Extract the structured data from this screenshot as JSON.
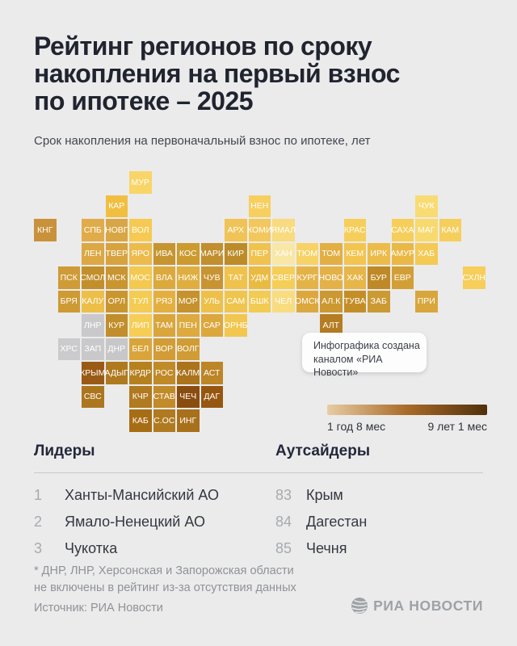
{
  "header": {
    "title_lines": [
      "Рейтинг регионов по сроку",
      "накопления на первый взнос",
      "по ипотеке – 2025"
    ],
    "subtitle": "Срок накопления на первоначальный взнос по ипотеке, лет"
  },
  "colors": {
    "background": "#EBEBEC",
    "title_text": "#20242F",
    "excluded_region": "#C9C9CB",
    "tile_text": "#FFFFFF"
  },
  "callout": {
    "lines": [
      "Инфографика создана",
      "каналом «РИА Новости»"
    ]
  },
  "chart_data": {
    "type": "heatmap",
    "subtype": "tile-grid-cartogram",
    "title": "Рейтинг регионов по сроку накопления на первый взнос по ипотеке – 2025",
    "subtitle": "Срок накопления на первоначальный взнос по ипотеке, лет",
    "legend": {
      "min_label": "1 год 8 мес",
      "max_label": "9 лет 1 мес",
      "gradient": [
        "#E7CDA4",
        "#A96A28",
        "#4F300C"
      ]
    },
    "tiles": [
      {
        "label": "МУР",
        "row": 1,
        "col": 5,
        "color": "#F9D567"
      },
      {
        "label": "КАР",
        "row": 2,
        "col": 4,
        "color": "#F1BE40"
      },
      {
        "label": "НЕН",
        "row": 2,
        "col": 10,
        "color": "#F7CF5E"
      },
      {
        "label": "ЧУК",
        "row": 2,
        "col": 17,
        "color": "#F9DB74"
      },
      {
        "label": "КНГ",
        "row": 3,
        "col": 1,
        "color": "#C9923A"
      },
      {
        "label": "СПБ",
        "row": 3,
        "col": 3,
        "color": "#E0AC4A"
      },
      {
        "label": "НОВГ",
        "row": 3,
        "col": 4,
        "color": "#D9A645"
      },
      {
        "label": "ВОЛ",
        "row": 3,
        "col": 5,
        "color": "#F6CA52"
      },
      {
        "label": "АРХ",
        "row": 3,
        "col": 9,
        "color": "#F0C356"
      },
      {
        "label": "КОМИ",
        "row": 3,
        "col": 10,
        "color": "#F2C85C"
      },
      {
        "label": "ЯМАЛ",
        "row": 3,
        "col": 11,
        "color": "#F9DA7E"
      },
      {
        "label": "КРАС",
        "row": 3,
        "col": 14,
        "color": "#F6CE5B"
      },
      {
        "label": "САХА",
        "row": 3,
        "col": 16,
        "color": "#F6CE5B"
      },
      {
        "label": "МАГ",
        "row": 3,
        "col": 17,
        "color": "#F8D96E"
      },
      {
        "label": "КАМ",
        "row": 3,
        "col": 18,
        "color": "#F6CE5B"
      },
      {
        "label": "ЛЕН",
        "row": 4,
        "col": 3,
        "color": "#DCA844"
      },
      {
        "label": "ТВЕР",
        "row": 4,
        "col": 4,
        "color": "#D7A33E"
      },
      {
        "label": "ЯРО",
        "row": 4,
        "col": 5,
        "color": "#ECBB4B"
      },
      {
        "label": "ИВА",
        "row": 4,
        "col": 6,
        "color": "#C6952F"
      },
      {
        "label": "КОС",
        "row": 4,
        "col": 7,
        "color": "#CC9B30"
      },
      {
        "label": "МАРИ",
        "row": 4,
        "col": 8,
        "color": "#C18F2D"
      },
      {
        "label": "КИР",
        "row": 4,
        "col": 9,
        "color": "#BC8C29"
      },
      {
        "label": "ПЕР",
        "row": 4,
        "col": 10,
        "color": "#F0C24E"
      },
      {
        "label": "ХАН",
        "row": 4,
        "col": 11,
        "color": "#F9E7A6"
      },
      {
        "label": "ТЮМ",
        "row": 4,
        "col": 12,
        "color": "#F7D366"
      },
      {
        "label": "ТОМ",
        "row": 4,
        "col": 13,
        "color": "#E2AF44"
      },
      {
        "label": "КЕМ",
        "row": 4,
        "col": 14,
        "color": "#F2C54E"
      },
      {
        "label": "ИРК",
        "row": 4,
        "col": 15,
        "color": "#ECBC4B"
      },
      {
        "label": "АМУР",
        "row": 4,
        "col": 16,
        "color": "#E9B845"
      },
      {
        "label": "ХАБ",
        "row": 4,
        "col": 17,
        "color": "#F4CA55"
      },
      {
        "label": "ПСК",
        "row": 5,
        "col": 2,
        "color": "#CE9B36"
      },
      {
        "label": "СМОЛ",
        "row": 5,
        "col": 3,
        "color": "#C28F2D"
      },
      {
        "label": "МСК",
        "row": 5,
        "col": 4,
        "color": "#C89531"
      },
      {
        "label": "МОС",
        "row": 5,
        "col": 5,
        "color": "#F3C94F"
      },
      {
        "label": "ВЛА",
        "row": 5,
        "col": 6,
        "color": "#DCA93C"
      },
      {
        "label": "НИЖ",
        "row": 5,
        "col": 7,
        "color": "#DFAE3E"
      },
      {
        "label": "ЧУВ",
        "row": 5,
        "col": 8,
        "color": "#C89432"
      },
      {
        "label": "ТАТ",
        "row": 5,
        "col": 9,
        "color": "#EFC24C"
      },
      {
        "label": "УДМ",
        "row": 5,
        "col": 10,
        "color": "#EABB42"
      },
      {
        "label": "СВЕР",
        "row": 5,
        "col": 11,
        "color": "#F5CE58"
      },
      {
        "label": "КУРГ",
        "row": 5,
        "col": 12,
        "color": "#E4B348"
      },
      {
        "label": "НОВО",
        "row": 5,
        "col": 13,
        "color": "#E3B147"
      },
      {
        "label": "ХАК",
        "row": 5,
        "col": 14,
        "color": "#E6B649"
      },
      {
        "label": "БУР",
        "row": 5,
        "col": 15,
        "color": "#BE8926"
      },
      {
        "label": "ЕВР",
        "row": 5,
        "col": 16,
        "color": "#D29F36"
      },
      {
        "label": "СХЛН",
        "row": 5,
        "col": 19,
        "color": "#F6CE59"
      },
      {
        "label": "БРЯ",
        "row": 6,
        "col": 2,
        "color": "#CE9A33"
      },
      {
        "label": "КАЛУ",
        "row": 6,
        "col": 3,
        "color": "#EDBF49"
      },
      {
        "label": "ОРЛ",
        "row": 6,
        "col": 4,
        "color": "#C9952E"
      },
      {
        "label": "ТУЛ",
        "row": 6,
        "col": 5,
        "color": "#F4CC52"
      },
      {
        "label": "РЯЗ",
        "row": 6,
        "col": 6,
        "color": "#E3B03F"
      },
      {
        "label": "МОР",
        "row": 6,
        "col": 7,
        "color": "#C6922D"
      },
      {
        "label": "УЛЬ",
        "row": 6,
        "col": 8,
        "color": "#EEC049"
      },
      {
        "label": "САМ",
        "row": 6,
        "col": 9,
        "color": "#F0C54D"
      },
      {
        "label": "БШК",
        "row": 6,
        "col": 10,
        "color": "#F2CB52"
      },
      {
        "label": "ЧЕЛ",
        "row": 6,
        "col": 11,
        "color": "#F8DC80"
      },
      {
        "label": "ОМСК",
        "row": 6,
        "col": 12,
        "color": "#DCA83E"
      },
      {
        "label": "АЛ.К",
        "row": 6,
        "col": 13,
        "color": "#CC9831"
      },
      {
        "label": "ТУВА",
        "row": 6,
        "col": 14,
        "color": "#C48E27"
      },
      {
        "label": "ЗАБ",
        "row": 6,
        "col": 15,
        "color": "#CC9A33"
      },
      {
        "label": "ПРИ",
        "row": 6,
        "col": 17,
        "color": "#D9A63C"
      },
      {
        "label": "ЛНР",
        "row": 7,
        "col": 3,
        "color": "#C9C9CB",
        "excluded": true
      },
      {
        "label": "КУР",
        "row": 7,
        "col": 4,
        "color": "#C28E2B"
      },
      {
        "label": "ЛИП",
        "row": 7,
        "col": 5,
        "color": "#F6CE55"
      },
      {
        "label": "ТАМ",
        "row": 7,
        "col": 6,
        "color": "#D9A63C"
      },
      {
        "label": "ПЕН",
        "row": 7,
        "col": 7,
        "color": "#DCAA3F"
      },
      {
        "label": "САР",
        "row": 7,
        "col": 8,
        "color": "#DCA83D"
      },
      {
        "label": "ОРНБ",
        "row": 7,
        "col": 9,
        "color": "#F2C74F"
      },
      {
        "label": "АЛТ",
        "row": 7,
        "col": 13,
        "color": "#B57D22"
      },
      {
        "label": "ХРС",
        "row": 8,
        "col": 2,
        "color": "#CBCBCD",
        "excluded": true
      },
      {
        "label": "ЗАП",
        "row": 8,
        "col": 3,
        "color": "#C9C9CB",
        "excluded": true
      },
      {
        "label": "ДНР",
        "row": 8,
        "col": 4,
        "color": "#C7C7C9",
        "excluded": true
      },
      {
        "label": "БЕЛ",
        "row": 8,
        "col": 5,
        "color": "#D9A53B"
      },
      {
        "label": "ВОР",
        "row": 8,
        "col": 6,
        "color": "#D29D36"
      },
      {
        "label": "ВОЛГ",
        "row": 8,
        "col": 7,
        "color": "#CF9C35"
      },
      {
        "label": "КРЫМ",
        "row": 9,
        "col": 3,
        "color": "#9A5A15"
      },
      {
        "label": "АДЫГ",
        "row": 9,
        "col": 4,
        "color": "#AF7A1F"
      },
      {
        "label": "КРДР",
        "row": 9,
        "col": 5,
        "color": "#B5811F"
      },
      {
        "label": "РОС",
        "row": 9,
        "col": 6,
        "color": "#C08A28"
      },
      {
        "label": "КАЛМ",
        "row": 9,
        "col": 7,
        "color": "#AA731C"
      },
      {
        "label": "АСТ",
        "row": 9,
        "col": 8,
        "color": "#BC8526"
      },
      {
        "label": "СВС",
        "row": 10,
        "col": 3,
        "color": "#AC761E"
      },
      {
        "label": "КЧР",
        "row": 10,
        "col": 5,
        "color": "#B07A20"
      },
      {
        "label": "СТАВ",
        "row": 10,
        "col": 6,
        "color": "#C18B29"
      },
      {
        "label": "ЧЕЧ",
        "row": 10,
        "col": 7,
        "color": "#8A4D10"
      },
      {
        "label": "ДАГ",
        "row": 10,
        "col": 8,
        "color": "#96560F"
      },
      {
        "label": "КАБ",
        "row": 11,
        "col": 5,
        "color": "#A76D15"
      },
      {
        "label": "С.ОС",
        "row": 11,
        "col": 6,
        "color": "#B07A20"
      },
      {
        "label": "ИНГ",
        "row": 11,
        "col": 7,
        "color": "#A8701A"
      }
    ],
    "leaders": {
      "title": "Лидеры",
      "items": [
        {
          "rank": "1",
          "name": "Ханты-Мансийский АО"
        },
        {
          "rank": "2",
          "name": "Ямало-Ненецкий АО"
        },
        {
          "rank": "3",
          "name": "Чукотка"
        }
      ]
    },
    "outsiders": {
      "title": "Аутсайдеры",
      "items": [
        {
          "rank": "83",
          "name": "Крым"
        },
        {
          "rank": "84",
          "name": "Дагестан"
        },
        {
          "rank": "85",
          "name": "Чечня"
        }
      ]
    }
  },
  "footer": {
    "footnote_lines": [
      "* ДНР, ЛНР, Херсонская и Запорожская области",
      "не включены в рейтинг из-за отсутствия данных"
    ],
    "source": "Источник: РИА Новости",
    "logo_text": "РИА НОВОСТИ"
  }
}
